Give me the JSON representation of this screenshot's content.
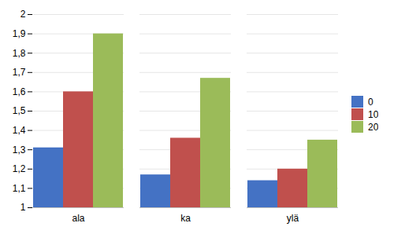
{
  "chart_data": {
    "type": "bar",
    "categories": [
      "ala",
      "ka",
      "ylä"
    ],
    "series": [
      {
        "name": "0",
        "color": "#4472C4",
        "values": [
          1.31,
          1.17,
          1.14
        ]
      },
      {
        "name": "10",
        "color": "#C0504D",
        "values": [
          1.6,
          1.36,
          1.2
        ]
      },
      {
        "name": "20",
        "color": "#9BBB59",
        "values": [
          1.9,
          1.67,
          1.35
        ]
      }
    ],
    "ylim": [
      1.0,
      2.0
    ],
    "yticks": [
      1,
      {
        "value": 1.1,
        "label": "1,1"
      },
      {
        "value": 1.2,
        "label": "1,2"
      },
      {
        "value": 1.3,
        "label": "1,3"
      },
      {
        "value": 1.4,
        "label": "1,4"
      },
      {
        "value": 1.5,
        "label": "1,5"
      },
      {
        "value": 1.6,
        "label": "1,6"
      },
      {
        "value": 1.7,
        "label": "1,7"
      },
      {
        "value": 1.8,
        "label": "1,8"
      },
      {
        "value": 1.9,
        "label": "1,9"
      },
      2
    ],
    "grid": true,
    "legend": "right"
  }
}
